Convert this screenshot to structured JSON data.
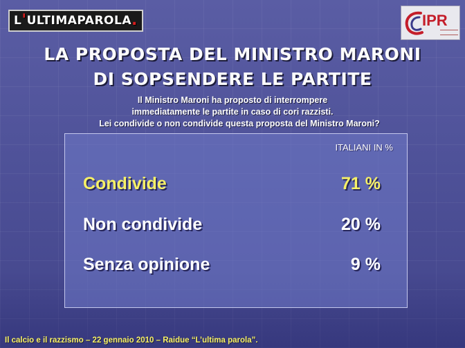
{
  "header": {
    "logo_left": {
      "prefix": "L",
      "accent": "'",
      "rest": "ULTIMAPAROLA",
      "dot": "."
    },
    "logo_right": {
      "text": "IPR"
    }
  },
  "title": {
    "line1": "LA PROPOSTA DEL MINISTRO MARONI",
    "line2": "DI SOPSENDERE LE PARTITE"
  },
  "question": {
    "line1": "Il Ministro Maroni ha proposto di interrompere",
    "line2": "immediatamente le partite in caso di cori razzisti.",
    "line3": "Lei condivide o non condivide questa proposta del Ministro Maroni?"
  },
  "results": {
    "header": "ITALIANI IN %",
    "rows": [
      {
        "label": "Condivide",
        "value": "71 %"
      },
      {
        "label": "Non condivide",
        "value": "20 %"
      },
      {
        "label": "Senza opinione",
        "value": "9 %"
      }
    ]
  },
  "footer": {
    "text": "Il calcio e il razzismo – 22 gennaio 2010 – Raidue “L’ultima parola”."
  },
  "colors": {
    "background": "#4f5299",
    "highlight": "#f6f066",
    "text": "#ffffff",
    "brand_red": "#c41e2a"
  }
}
